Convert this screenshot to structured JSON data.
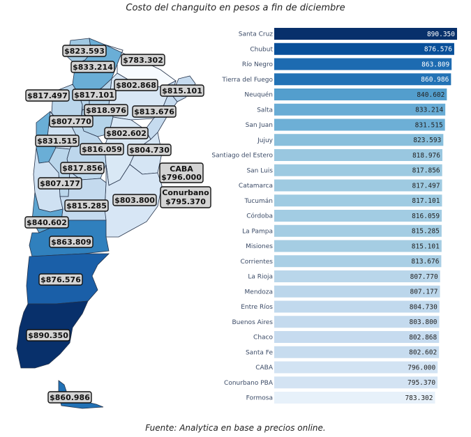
{
  "title": "Costo del changuito en pesos a fin de diciembre",
  "source": "Fuente: Analytica en base a precios online.",
  "chart_data": {
    "type": "bar",
    "orientation": "horizontal",
    "categories": [
      "Santa Cruz",
      "Chubut",
      "Río Negro",
      "Tierra del Fuego",
      "Neuquén",
      "Salta",
      "San Juan",
      "Jujuy",
      "Santiago del Estero",
      "San Luis",
      "Catamarca",
      "Tucumán",
      "Córdoba",
      "La Pampa",
      "Misiones",
      "Corrientes",
      "La Rioja",
      "Mendoza",
      "Entre Ríos",
      "Buenos Aires",
      "Chaco",
      "Santa Fe",
      "CABA",
      "Conurbano PBA",
      "Formosa"
    ],
    "values": [
      890.35,
      876.576,
      863.809,
      860.986,
      840.602,
      833.214,
      831.515,
      823.593,
      818.976,
      817.856,
      817.497,
      817.101,
      816.059,
      815.285,
      815.101,
      813.676,
      807.77,
      807.177,
      804.73,
      803.8,
      802.868,
      802.602,
      796.0,
      795.37,
      783.302
    ],
    "value_labels": [
      "890.350",
      "876.576",
      "863.809",
      "860.986",
      "840.602",
      "833.214",
      "831.515",
      "823.593",
      "818.976",
      "817.856",
      "817.497",
      "817.101",
      "816.059",
      "815.285",
      "815.101",
      "813.676",
      "807.770",
      "807.177",
      "804.730",
      "803.800",
      "802.868",
      "802.602",
      "796.000",
      "795.370",
      "783.302"
    ],
    "xlim": [
      0,
      890.35
    ],
    "colormap": "Blues",
    "grid": false,
    "legend": "none"
  },
  "map": {
    "type": "choropleth",
    "colormap": "Blues",
    "labels": {
      "jujuy": "$823.593",
      "formosa": "$783.302",
      "salta": "$833.214",
      "chaco": "$802.868",
      "misiones": "$815.101",
      "catamarca": "$817.497",
      "tucuman": "$817.101",
      "santiago": "$818.976",
      "corrientes": "$813.676",
      "la_rioja": "$807.770",
      "santa_fe": "$802.602",
      "san_juan": "$831.515",
      "cordoba": "$816.059",
      "entre_rios": "$804.730",
      "san_luis": "$817.856",
      "caba_name": "CABA",
      "caba_value": "$796.000",
      "mendoza": "$807.177",
      "conurbano_name": "Conurbano",
      "conurbano_value": "$795.370",
      "buenos_aires": "$803.800",
      "la_pampa": "$815.285",
      "neuquen": "$840.602",
      "rio_negro": "$863.809",
      "chubut": "$876.576",
      "santa_cruz": "$890.350",
      "tierra_del_fuego": "$860.986"
    }
  }
}
